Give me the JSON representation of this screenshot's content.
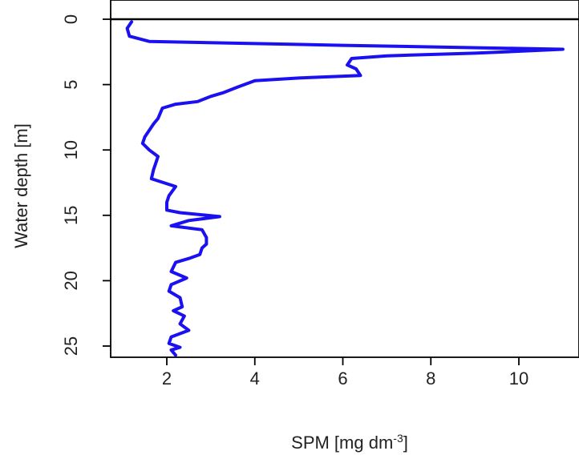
{
  "chart_data": {
    "type": "line",
    "title": "",
    "xlabel": "SPM [mg dm",
    "xlabel_superscript": "-3",
    "xlabel_suffix": "]",
    "ylabel": "Water depth [m]",
    "xlim": [
      0.5,
      11.5
    ],
    "ylim": [
      0,
      26
    ],
    "y_reversed": true,
    "grid": false,
    "x_ticks": [
      "2",
      "4",
      "6",
      "8",
      "10"
    ],
    "y_ticks": [
      "0",
      "5",
      "10",
      "15",
      "20",
      "25"
    ],
    "reference_line": {
      "y": 0,
      "color": "#000000"
    },
    "series": [
      {
        "color": "#1a10f0",
        "points": [
          [
            1.2,
            0.2
          ],
          [
            1.1,
            0.7
          ],
          [
            1.15,
            1.3
          ],
          [
            1.6,
            1.7
          ],
          [
            6.0,
            2.0
          ],
          [
            11.0,
            2.3
          ],
          [
            9.0,
            2.6
          ],
          [
            7.0,
            2.8
          ],
          [
            6.2,
            3.0
          ],
          [
            6.1,
            3.5
          ],
          [
            6.3,
            3.8
          ],
          [
            6.4,
            4.3
          ],
          [
            5.0,
            4.5
          ],
          [
            4.0,
            4.7
          ],
          [
            3.6,
            5.2
          ],
          [
            3.3,
            5.6
          ],
          [
            3.0,
            5.9
          ],
          [
            2.7,
            6.3
          ],
          [
            2.2,
            6.5
          ],
          [
            1.9,
            6.8
          ],
          [
            1.8,
            7.6
          ],
          [
            1.7,
            8.0
          ],
          [
            1.6,
            8.5
          ],
          [
            1.5,
            9.0
          ],
          [
            1.45,
            9.5
          ],
          [
            1.6,
            10.0
          ],
          [
            1.8,
            10.5
          ],
          [
            1.75,
            11.0
          ],
          [
            1.7,
            11.5
          ],
          [
            1.65,
            12.2
          ],
          [
            2.2,
            12.8
          ],
          [
            2.05,
            13.5
          ],
          [
            2.0,
            14.0
          ],
          [
            2.0,
            14.6
          ],
          [
            2.3,
            14.8
          ],
          [
            3.2,
            15.1
          ],
          [
            2.5,
            15.4
          ],
          [
            2.1,
            15.8
          ],
          [
            2.8,
            16.1
          ],
          [
            2.9,
            16.7
          ],
          [
            2.9,
            17.2
          ],
          [
            2.8,
            17.5
          ],
          [
            2.75,
            18.0
          ],
          [
            2.5,
            18.3
          ],
          [
            2.2,
            18.6
          ],
          [
            2.1,
            19.3
          ],
          [
            2.45,
            19.8
          ],
          [
            2.1,
            20.3
          ],
          [
            2.05,
            20.8
          ],
          [
            2.3,
            21.3
          ],
          [
            2.35,
            22.0
          ],
          [
            2.15,
            22.3
          ],
          [
            2.4,
            22.7
          ],
          [
            2.3,
            23.3
          ],
          [
            2.5,
            23.8
          ],
          [
            2.1,
            24.3
          ],
          [
            2.05,
            24.8
          ],
          [
            2.3,
            25.1
          ],
          [
            2.1,
            25.3
          ],
          [
            2.2,
            25.7
          ]
        ]
      }
    ]
  }
}
